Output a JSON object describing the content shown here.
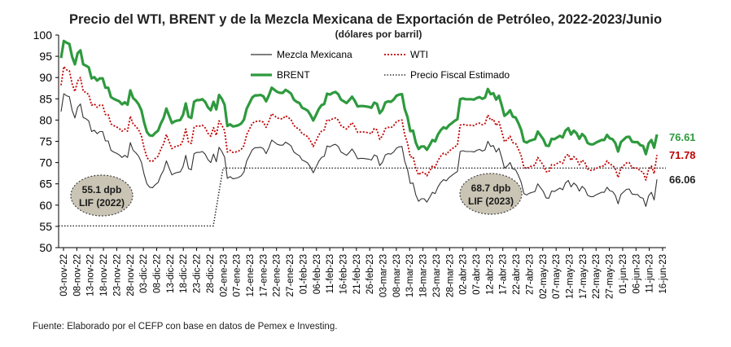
{
  "chart_data": {
    "type": "line",
    "title": "Precio del WTI, BRENT y de la Mezcla Mexicana de Exportación de Petróleo, 2022-2023/Junio",
    "subtitle": "(dólares por barril)",
    "source": "Fuente:  Elaborado por el CEFP con base en datos de Pemex e Investing.",
    "ylim": [
      50,
      100
    ],
    "yticks": [
      "50",
      "55",
      "60",
      "65",
      "70",
      "75",
      "80",
      "85",
      "90",
      "95",
      "100"
    ],
    "xticklabels": [
      "03-nov-22",
      "08-nov-22",
      "13-nov-22",
      "18-nov-22",
      "23-nov-22",
      "28-nov-22",
      "03-dic-22",
      "08-dic-22",
      "13-dic-22",
      "18-dic-22",
      "23-dic-22",
      "28-dic-22",
      "02-ene-23",
      "07-ene-23",
      "12-ene-23",
      "17-ene-23",
      "22-ene-23",
      "27-ene-23",
      "01-feb-23",
      "06-feb-23",
      "11-feb-23",
      "16-feb-23",
      "21-feb-23",
      "26-feb-23",
      "03-mar-23",
      "08-mar-23",
      "13-mar-23",
      "18-mar-23",
      "23-mar-23",
      "28-mar-23",
      "02-abr-23",
      "07-abr-23",
      "12-abr-23",
      "17-abr-23",
      "22-abr-23",
      "27-abr-23",
      "02-may-23",
      "07-may-23",
      "12-may-23",
      "17-may-23",
      "22-may-23",
      "27-may-23",
      "01-jun-23",
      "06-jun-23",
      "11-jun-23",
      "16-jun-23"
    ],
    "legend": [
      {
        "name": "Mezcla Mexicana",
        "color": "#333333",
        "style": "solid"
      },
      {
        "name": "WTI",
        "color": "#c00000",
        "style": "dotted"
      },
      {
        "name": "BRENT",
        "color": "#2e9a3e",
        "style": "solid-thick"
      },
      {
        "name": "Precio Fiscal Estimado",
        "color": "#333333",
        "style": "dotted"
      }
    ],
    "series": [
      {
        "name": "BRENT",
        "color": "#2e9a3e",
        "end_label": "76.61",
        "values": [
          94.6,
          98.6,
          98.2,
          97.9,
          94.9,
          93.1,
          95.7,
          96.4,
          93.1,
          92.8,
          92.4,
          89.8,
          90.1,
          89.3,
          89.8,
          89.8,
          87.6,
          87.6,
          85.4,
          85.0,
          84.7,
          84.4,
          83.7,
          84.2,
          83.6,
          87.0,
          85.2,
          84.6,
          83.7,
          82.3,
          79.4,
          77.2,
          76.4,
          76.3,
          77.0,
          77.5,
          79.2,
          80.5,
          82.7,
          81.0,
          79.3,
          79.7,
          79.9,
          80.0,
          81.2,
          83.9,
          80.8,
          80.5,
          84.3,
          84.7,
          84.7,
          84.9,
          84.3,
          83.0,
          82.3,
          84.3,
          82.5,
          85.9,
          85.0,
          83.6,
          78.6,
          79.0,
          78.5,
          78.6,
          78.8,
          79.2,
          80.1,
          82.7,
          84.0,
          85.3,
          85.8,
          85.8,
          85.9,
          85.6,
          84.4,
          85.8,
          87.6,
          87.1,
          86.6,
          86.4,
          86.4,
          87.1,
          86.7,
          86.2,
          84.8,
          84.3,
          84.0,
          82.9,
          82.6,
          82.2,
          81.2,
          79.9,
          81.2,
          82.6,
          83.5,
          83.8,
          86.2,
          86.0,
          86.4,
          86.6,
          86.1,
          84.8,
          84.4,
          84.0,
          84.7,
          85.5,
          84.5,
          83.2,
          83.3,
          83.3,
          83.2,
          83.1,
          82.9,
          84.1,
          83.8,
          81.6,
          82.4,
          84.1,
          84.4,
          84.3,
          84.8,
          85.7,
          86.0,
          86.1,
          82.6,
          80.7,
          77.4,
          77.5,
          74.7,
          73.2,
          73.8,
          73.8,
          73.0,
          74.1,
          75.3,
          75.0,
          76.6,
          77.6,
          78.3,
          78.0,
          78.8,
          79.3,
          79.8,
          80.2,
          84.9,
          85.1,
          84.9,
          84.9,
          84.9,
          84.8,
          85.2,
          85.4,
          85.0,
          85.3,
          87.3,
          86.1,
          86.3,
          84.8,
          85.7,
          83.5,
          81.0,
          81.5,
          82.3,
          80.8,
          80.6,
          79.3,
          77.7,
          75.0,
          74.7,
          75.1,
          75.3,
          75.5,
          77.3,
          76.4,
          75.5,
          74.0,
          73.9,
          75.6,
          75.5,
          75.9,
          76.3,
          75.9,
          77.5,
          78.1,
          76.6,
          77.5,
          76.9,
          75.6,
          76.7,
          76.1,
          74.6,
          74.3,
          74.3,
          74.7,
          75.0,
          75.3,
          75.3,
          76.5,
          75.7,
          75.5,
          74.6,
          72.6,
          74.8,
          75.4,
          76.0,
          76.1,
          74.9,
          74.8,
          74.8,
          74.1,
          73.9,
          72.0,
          74.5,
          75.3,
          73.5,
          76.6
        ]
      },
      {
        "name": "WTI",
        "color": "#c00000",
        "end_label": "71.78",
        "values": [
          88.2,
          92.6,
          91.8,
          91.6,
          88.5,
          86.7,
          89.2,
          90.0,
          86.8,
          86.5,
          86.0,
          83.5,
          83.8,
          83.0,
          83.5,
          83.5,
          81.3,
          81.3,
          79.1,
          78.7,
          78.4,
          78.0,
          77.4,
          77.9,
          77.4,
          80.9,
          79.1,
          78.5,
          77.7,
          76.3,
          73.4,
          71.2,
          70.4,
          70.3,
          71.0,
          71.5,
          73.2,
          74.4,
          76.6,
          74.9,
          73.3,
          73.7,
          73.9,
          74.0,
          75.2,
          77.9,
          74.8,
          74.5,
          78.3,
          78.6,
          78.6,
          78.8,
          78.2,
          76.9,
          76.2,
          78.2,
          76.4,
          79.8,
          78.8,
          77.5,
          72.5,
          72.9,
          72.4,
          72.5,
          72.7,
          73.1,
          74.0,
          76.6,
          77.9,
          79.2,
          79.7,
          79.7,
          79.8,
          79.5,
          78.3,
          79.7,
          81.5,
          81.0,
          80.5,
          80.3,
          80.3,
          81.0,
          80.6,
          80.1,
          78.7,
          78.2,
          77.8,
          76.8,
          76.5,
          76.1,
          75.1,
          73.8,
          75.1,
          76.5,
          77.4,
          77.7,
          80.1,
          79.9,
          80.3,
          80.5,
          80.0,
          78.7,
          78.3,
          77.9,
          78.6,
          79.4,
          78.4,
          77.1,
          77.2,
          77.2,
          77.1,
          77.0,
          76.8,
          78.0,
          77.7,
          75.5,
          76.3,
          78.0,
          78.3,
          78.2,
          78.7,
          79.6,
          79.9,
          80.0,
          76.5,
          74.6,
          71.3,
          71.4,
          68.6,
          67.1,
          67.7,
          67.7,
          66.9,
          68.0,
          69.2,
          68.9,
          70.5,
          71.5,
          72.2,
          71.9,
          72.7,
          73.2,
          73.7,
          74.1,
          78.8,
          79.0,
          78.8,
          78.8,
          78.8,
          78.7,
          79.1,
          79.3,
          78.9,
          79.2,
          81.2,
          80.0,
          80.2,
          78.7,
          79.6,
          77.4,
          74.9,
          75.4,
          76.2,
          74.7,
          74.5,
          73.2,
          71.6,
          68.9,
          68.6,
          69.0,
          69.2,
          69.4,
          71.2,
          70.3,
          69.4,
          67.9,
          67.8,
          69.5,
          69.4,
          69.8,
          70.2,
          69.8,
          71.4,
          72.0,
          70.5,
          71.4,
          70.8,
          69.5,
          70.6,
          70.0,
          68.5,
          68.2,
          68.2,
          68.6,
          68.9,
          69.2,
          69.2,
          70.4,
          69.6,
          69.4,
          68.5,
          66.5,
          68.7,
          69.3,
          69.9,
          70.0,
          68.8,
          68.7,
          68.7,
          68.0,
          67.8,
          65.9,
          68.4,
          69.2,
          67.4,
          71.78
        ]
      },
      {
        "name": "Mezcla Mexicana",
        "color": "#333333",
        "end_label": "66.06",
        "values": [
          82.0,
          86.2,
          85.7,
          85.5,
          82.3,
          80.5,
          83.0,
          83.8,
          80.6,
          80.3,
          79.8,
          77.3,
          77.6,
          76.8,
          77.3,
          77.3,
          75.1,
          75.1,
          72.9,
          72.5,
          72.2,
          71.8,
          71.2,
          71.7,
          71.2,
          74.7,
          72.9,
          72.3,
          71.5,
          70.1,
          67.2,
          65.0,
          64.2,
          64.1,
          64.8,
          65.3,
          67.0,
          68.2,
          70.4,
          68.7,
          67.1,
          67.5,
          67.7,
          67.8,
          69.0,
          71.7,
          68.6,
          68.3,
          72.1,
          72.4,
          72.4,
          72.6,
          72.0,
          70.7,
          70.0,
          72.0,
          70.2,
          73.6,
          72.6,
          71.3,
          66.3,
          66.7,
          66.2,
          66.3,
          66.5,
          66.9,
          67.8,
          70.4,
          71.7,
          73.0,
          73.5,
          73.5,
          73.6,
          73.3,
          72.1,
          73.5,
          75.3,
          74.8,
          74.3,
          74.1,
          74.1,
          74.8,
          74.4,
          73.9,
          72.5,
          72.0,
          71.6,
          70.6,
          70.3,
          69.9,
          68.9,
          67.6,
          68.9,
          70.3,
          71.2,
          71.5,
          73.9,
          73.7,
          74.1,
          74.3,
          73.8,
          72.5,
          72.1,
          71.7,
          72.4,
          73.2,
          72.2,
          70.9,
          71.0,
          71.0,
          70.9,
          70.8,
          70.6,
          71.8,
          71.5,
          69.3,
          70.1,
          71.8,
          72.1,
          72.0,
          72.5,
          73.4,
          73.7,
          73.8,
          70.3,
          68.4,
          65.1,
          65.2,
          62.4,
          60.9,
          61.5,
          61.5,
          60.7,
          61.8,
          63.0,
          62.7,
          64.3,
          65.3,
          66.0,
          65.7,
          66.5,
          67.0,
          67.5,
          67.9,
          72.6,
          72.8,
          72.6,
          72.6,
          72.6,
          72.5,
          72.9,
          73.1,
          72.7,
          73.0,
          75.0,
          73.8,
          74.0,
          72.5,
          73.4,
          71.2,
          68.7,
          69.2,
          70.0,
          68.5,
          68.3,
          67.0,
          65.4,
          62.7,
          62.4,
          62.8,
          63.0,
          63.2,
          65.0,
          64.1,
          63.2,
          61.7,
          61.6,
          63.3,
          63.2,
          63.6,
          64.0,
          63.6,
          65.2,
          65.8,
          64.3,
          65.2,
          64.6,
          63.3,
          64.4,
          63.8,
          62.3,
          62.0,
          62.0,
          62.4,
          62.7,
          63.0,
          63.0,
          64.2,
          63.4,
          63.2,
          62.3,
          60.3,
          62.5,
          63.1,
          63.7,
          63.8,
          62.6,
          62.5,
          62.5,
          61.8,
          61.6,
          59.7,
          62.2,
          63.0,
          61.2,
          66.06
        ]
      }
    ],
    "reference_line": {
      "name": "Precio Fiscal Estimado",
      "segments": [
        {
          "label": "55.1 dpb LIF (2022)",
          "value": 55.1
        },
        {
          "label": "68.7 dpb LIF (2023)",
          "value": 68.7
        }
      ]
    },
    "annotations": [
      {
        "line1": "55.1 dpb",
        "line2": "LIF (2022)"
      },
      {
        "line1": "68.7 dpb",
        "line2": "LIF (2023)"
      }
    ]
  }
}
